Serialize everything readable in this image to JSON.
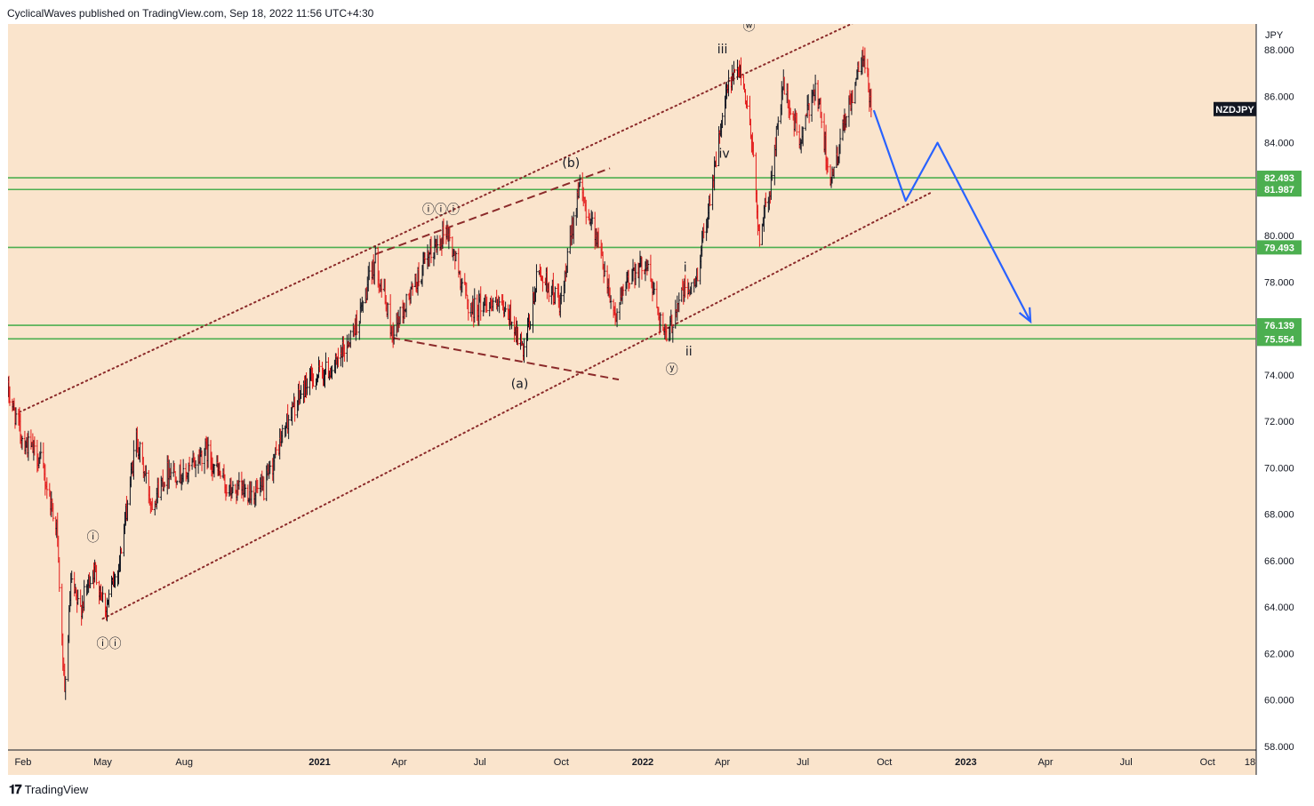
{
  "header": {
    "published_text": "CyclicalWaves published on TradingView.com, Sep 18, 2022 11:56 UTC+4:30"
  },
  "footer": {
    "brand": "TradingView",
    "logo_icon": "tradingview-logo-icon"
  },
  "colors": {
    "background": "#fae4cc",
    "candle_up": "#131722",
    "candle_down": "#e31b1b",
    "support_lines": "#4caf50",
    "channel": "#8b2a2a",
    "projection": "#2962ff",
    "price_tag": "#131722"
  },
  "chart_data": {
    "type": "candlestick",
    "symbol": "NZDJPY",
    "currency_label": "JPY",
    "last_price": 85.45,
    "y_axis": {
      "min": 58,
      "max": 89,
      "ticks": [
        "58.000",
        "60.000",
        "62.000",
        "64.000",
        "66.000",
        "68.000",
        "70.000",
        "72.000",
        "74.000",
        "76.000",
        "78.000",
        "80.000",
        "82.000",
        "84.000",
        "86.000",
        "88.000"
      ]
    },
    "x_axis": {
      "start": "2020-01-15",
      "end": "2023-11-25",
      "labels": [
        {
          "text": "Feb",
          "date": "2020-02-01",
          "bold": false
        },
        {
          "text": "May",
          "date": "2020-05-01",
          "bold": false
        },
        {
          "text": "Aug",
          "date": "2020-08-01",
          "bold": false
        },
        {
          "text": "2021",
          "date": "2021-01-01",
          "bold": true
        },
        {
          "text": "Apr",
          "date": "2021-04-01",
          "bold": false
        },
        {
          "text": "Jul",
          "date": "2021-07-01",
          "bold": false
        },
        {
          "text": "Oct",
          "date": "2021-10-01",
          "bold": false
        },
        {
          "text": "2022",
          "date": "2022-01-01",
          "bold": true
        },
        {
          "text": "Apr",
          "date": "2022-04-01",
          "bold": false
        },
        {
          "text": "Jul",
          "date": "2022-07-01",
          "bold": false
        },
        {
          "text": "Oct",
          "date": "2022-10-01",
          "bold": false
        },
        {
          "text": "2023",
          "date": "2023-01-01",
          "bold": true
        },
        {
          "text": "Apr",
          "date": "2023-04-01",
          "bold": false
        },
        {
          "text": "Jul",
          "date": "2023-07-01",
          "bold": false
        },
        {
          "text": "Oct",
          "date": "2023-10-01",
          "bold": false
        },
        {
          "text": "18",
          "date": "2023-11-18",
          "bold": false
        }
      ]
    },
    "price_path": [
      [
        "2020-01-15",
        73.3
      ],
      [
        "2020-02-01",
        71.2
      ],
      [
        "2020-02-20",
        70.4
      ],
      [
        "2020-03-10",
        67.5
      ],
      [
        "2020-03-19",
        60.0
      ],
      [
        "2020-03-26",
        65.0
      ],
      [
        "2020-04-05",
        63.8
      ],
      [
        "2020-04-20",
        65.7
      ],
      [
        "2020-05-05",
        64.0
      ],
      [
        "2020-05-20",
        66.0
      ],
      [
        "2020-06-08",
        71.3
      ],
      [
        "2020-06-25",
        68.5
      ],
      [
        "2020-07-15",
        70.0
      ],
      [
        "2020-08-01",
        69.6
      ],
      [
        "2020-08-25",
        70.8
      ],
      [
        "2020-09-20",
        69.0
      ],
      [
        "2020-10-30",
        69.0
      ],
      [
        "2020-11-25",
        72.0
      ],
      [
        "2020-12-20",
        73.8
      ],
      [
        "2021-01-20",
        74.4
      ],
      [
        "2021-02-15",
        76.5
      ],
      [
        "2021-03-05",
        79.0
      ],
      [
        "2021-03-24",
        75.8
      ],
      [
        "2021-04-20",
        78.0
      ],
      [
        "2021-05-10",
        79.4
      ],
      [
        "2021-05-24",
        80.3
      ],
      [
        "2021-06-20",
        76.8
      ],
      [
        "2021-07-10",
        77.2
      ],
      [
        "2021-08-05",
        76.5
      ],
      [
        "2021-08-20",
        74.8
      ],
      [
        "2021-09-05",
        78.5
      ],
      [
        "2021-10-01",
        77.0
      ],
      [
        "2021-10-20",
        82.1
      ],
      [
        "2021-11-10",
        80.0
      ],
      [
        "2021-12-01",
        76.5
      ],
      [
        "2021-12-20",
        78.5
      ],
      [
        "2022-01-05",
        78.8
      ],
      [
        "2022-01-28",
        75.4
      ],
      [
        "2022-02-12",
        77.5
      ],
      [
        "2022-03-01",
        77.8
      ],
      [
        "2022-03-15",
        81.0
      ],
      [
        "2022-04-01",
        85.0
      ],
      [
        "2022-04-08",
        86.5
      ],
      [
        "2022-04-22",
        87.2
      ],
      [
        "2022-05-05",
        84.0
      ],
      [
        "2022-05-12",
        79.9
      ],
      [
        "2022-05-25",
        82.0
      ],
      [
        "2022-06-08",
        86.5
      ],
      [
        "2022-06-28",
        84.0
      ],
      [
        "2022-07-15",
        86.6
      ],
      [
        "2022-08-02",
        82.2
      ],
      [
        "2022-08-18",
        85.0
      ],
      [
        "2022-09-07",
        87.7
      ],
      [
        "2022-09-17",
        85.45
      ]
    ],
    "horizontal_levels": [
      82.493,
      81.987,
      79.493,
      76.139,
      75.554
    ],
    "channel_lines": [
      {
        "style": "dotted",
        "from": [
          "2020-05-01",
          63.5
        ],
        "to": [
          "2022-11-25",
          81.9
        ]
      },
      {
        "style": "dotted",
        "from": [
          "2020-01-28",
          72.4
        ],
        "to": [
          "2022-09-15",
          89.5
        ]
      }
    ],
    "triangle_lines": [
      {
        "style": "dashed",
        "from": [
          "2021-03-24",
          75.6
        ],
        "to": [
          "2021-12-05",
          73.8
        ]
      },
      {
        "style": "dashed",
        "from": [
          "2021-03-05",
          79.2
        ],
        "to": [
          "2021-11-25",
          82.9
        ]
      }
    ],
    "projection_path": [
      [
        "2022-09-19",
        85.4
      ],
      [
        "2022-10-25",
        81.5
      ],
      [
        "2022-11-30",
        84.0
      ],
      [
        "2023-03-15",
        76.3
      ]
    ],
    "wave_labels": [
      {
        "text": "ⓘ",
        "date": "2020-04-20",
        "price": 67.0
      },
      {
        "text": "ⓘⓘ",
        "date": "2020-05-08",
        "price": 62.4
      },
      {
        "text": "ⓘⓘⓘ",
        "date": "2021-05-18",
        "price": 81.1
      },
      {
        "text": "(a)",
        "date": "2021-08-15",
        "price": 73.6
      },
      {
        "text": "(b)",
        "date": "2021-10-12",
        "price": 83.1
      },
      {
        "text": "ⓨ",
        "date": "2022-02-03",
        "price": 74.2
      },
      {
        "text": "i",
        "date": "2022-02-18",
        "price": 78.6
      },
      {
        "text": "ii",
        "date": "2022-02-22",
        "price": 75.0
      },
      {
        "text": "iii",
        "date": "2022-04-01",
        "price": 88.0
      },
      {
        "text": "iv",
        "date": "2022-04-03",
        "price": 83.5
      },
      {
        "text": "ⓦ",
        "date": "2022-05-01",
        "price": 89.0
      }
    ],
    "price_tags": [
      {
        "text": "NZDJPY",
        "price": 85.45,
        "kind": "symbol"
      },
      {
        "text": "82.493",
        "price": 82.493,
        "kind": "level"
      },
      {
        "text": "81.987",
        "price": 81.987,
        "kind": "level"
      },
      {
        "text": "79.493",
        "price": 79.493,
        "kind": "level"
      },
      {
        "text": "76.139",
        "price": 76.139,
        "kind": "level"
      },
      {
        "text": "75.554",
        "price": 75.554,
        "kind": "level"
      }
    ]
  }
}
